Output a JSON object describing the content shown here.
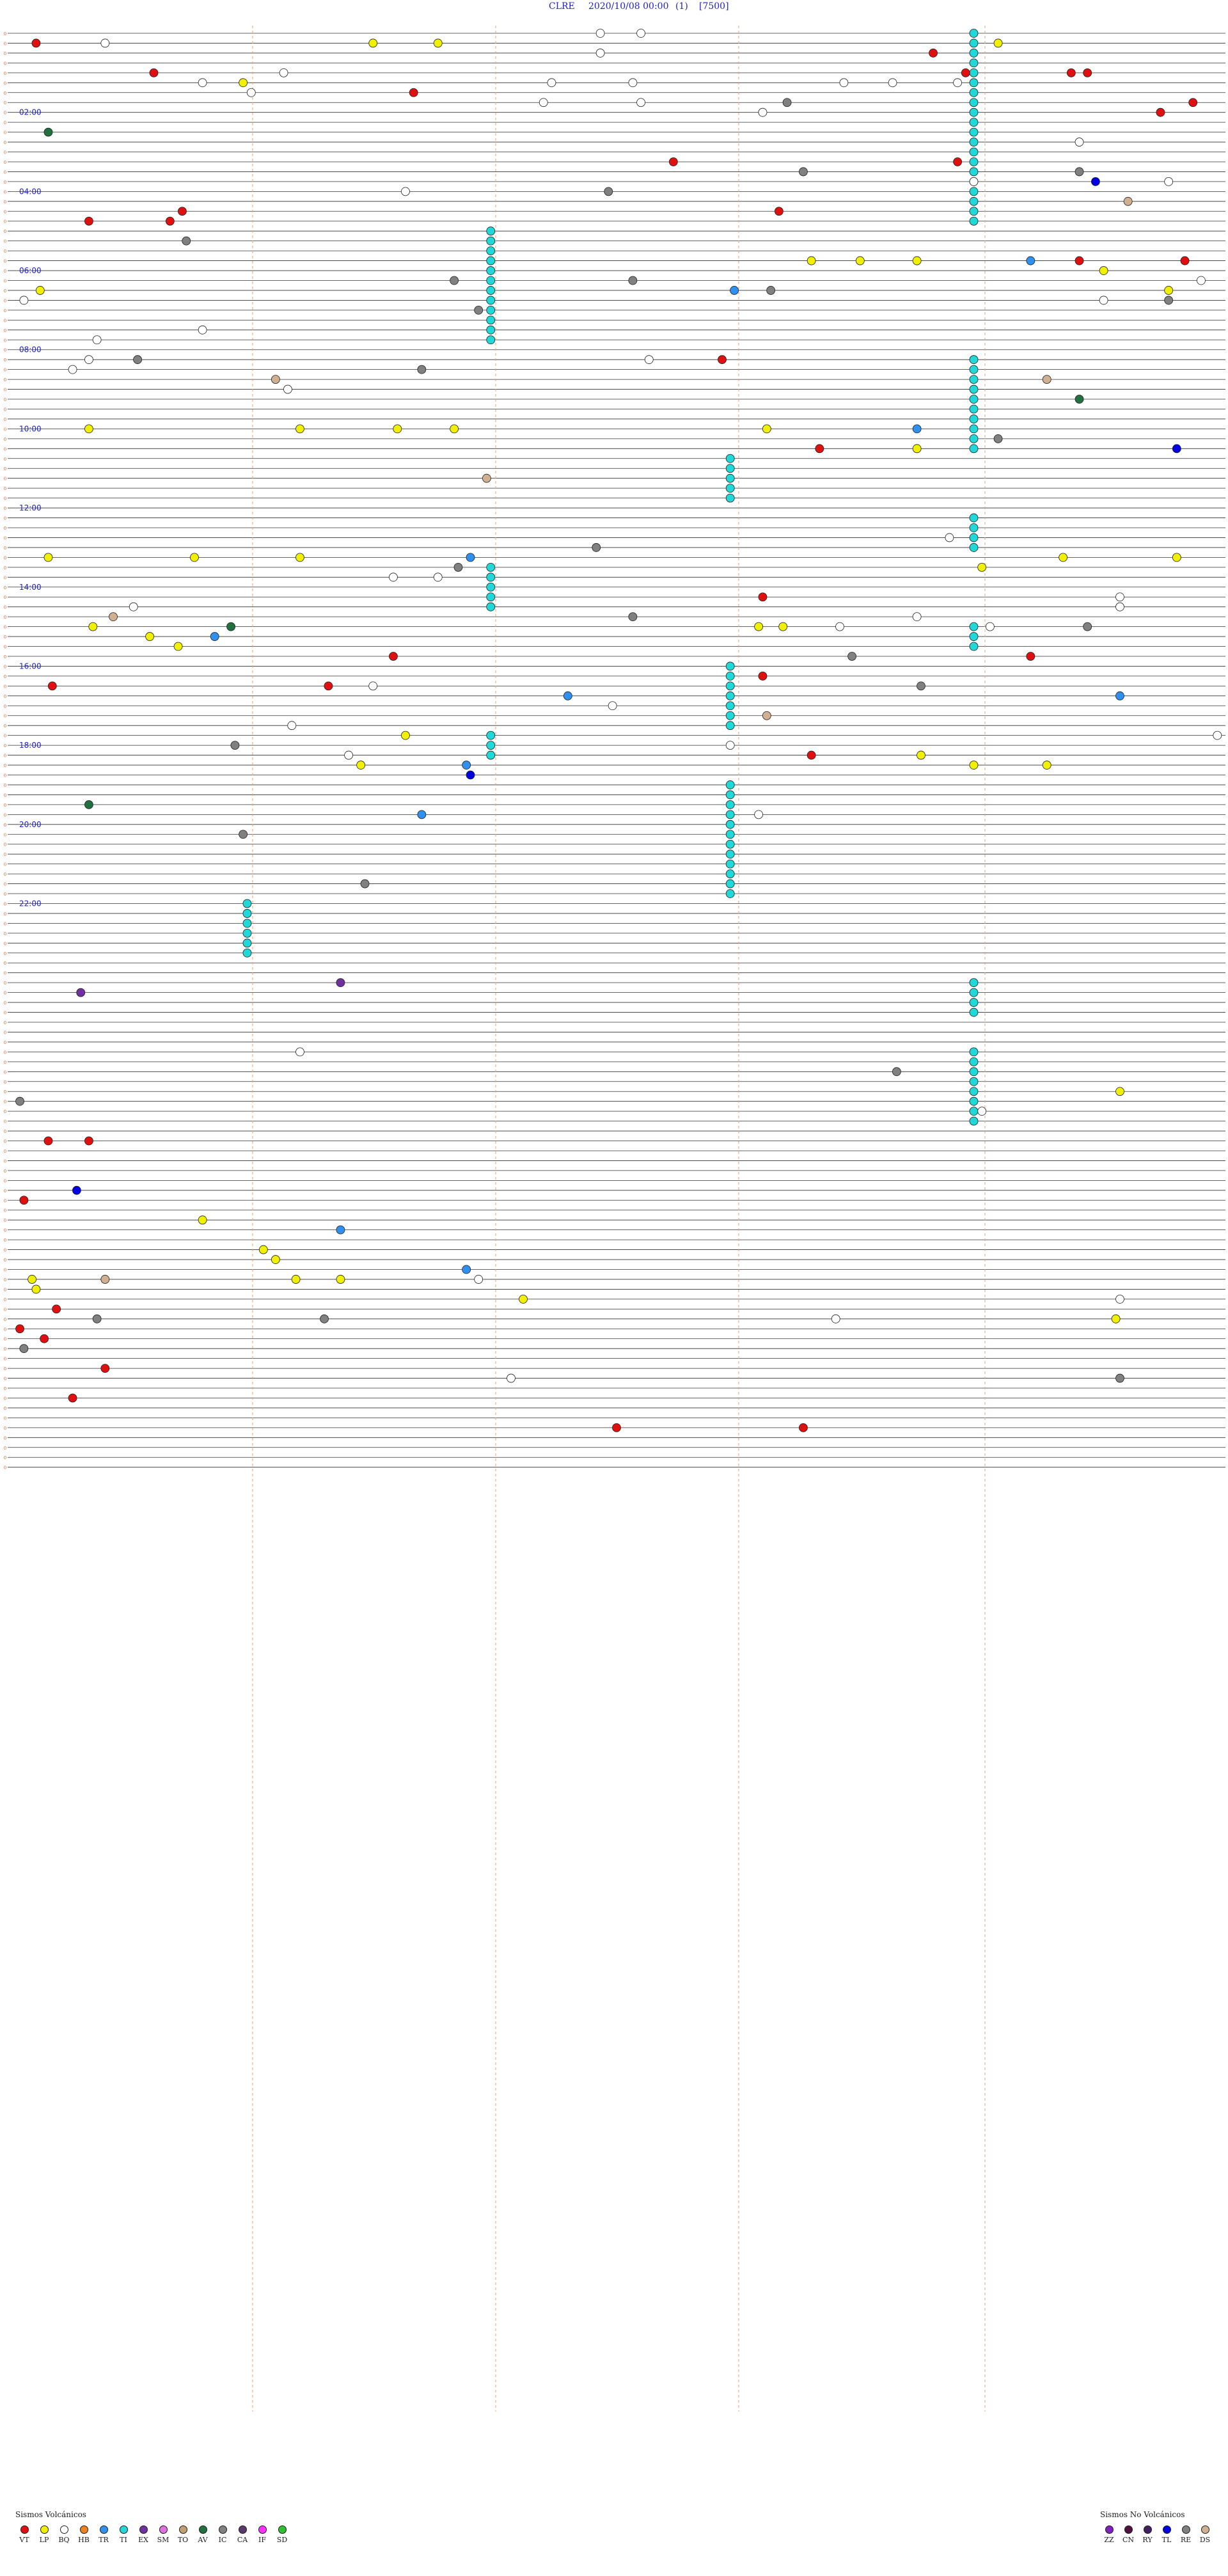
{
  "header": {
    "station": "CLRE",
    "datetime": "2020/10/08 00:00",
    "page": "(1)",
    "scale": "[7500]"
  },
  "legend": {
    "volcanic_title": "Sismos Volcánicos",
    "volcanic": [
      {
        "code": "VT",
        "color": "#e01010"
      },
      {
        "code": "LP",
        "color": "#f0f000"
      },
      {
        "code": "BQ",
        "color": "#ffffff"
      },
      {
        "code": "HB",
        "color": "#f08020"
      },
      {
        "code": "TR",
        "color": "#3090f0"
      },
      {
        "code": "TI",
        "color": "#20d8d8"
      },
      {
        "code": "EX",
        "color": "#7030a0"
      },
      {
        "code": "SM",
        "color": "#e070e0"
      },
      {
        "code": "TO",
        "color": "#c0a070"
      },
      {
        "code": "AV",
        "color": "#207040"
      },
      {
        "code": "IC",
        "color": "#808080"
      },
      {
        "code": "CA",
        "color": "#5a3a6a"
      },
      {
        "code": "IF",
        "color": "#ff30ff"
      },
      {
        "code": "SD",
        "color": "#30c030"
      }
    ],
    "nonvolcanic_title": "Sismos No Volcánicos",
    "nonvolcanic": [
      {
        "code": "ZZ",
        "color": "#8020c0"
      },
      {
        "code": "CN",
        "color": "#501040"
      },
      {
        "code": "RY",
        "color": "#402060"
      },
      {
        "code": "TL",
        "color": "#0000e0"
      },
      {
        "code": "RE",
        "color": "#808080"
      },
      {
        "code": "DS",
        "color": "#d0b090"
      }
    ]
  },
  "chart_data": {
    "type": "scatter",
    "title": "CLRE 2020/10/08 00:00 (1) [7500]",
    "x_unit": "minute within the trace line (0-15)",
    "y_unit": "trace line (15 min each, 96 lines = 24 h)",
    "hour_labels": [
      "02:00",
      "04:00",
      "06:00",
      "08:00",
      "10:00",
      "12:00",
      "14:00",
      "16:00",
      "18:00",
      "20:00",
      "22:00"
    ],
    "tremor_bands": [
      {
        "x": 11.9,
        "rows": [
          0,
          19
        ]
      },
      {
        "x": 5.95,
        "rows": [
          20,
          31
        ]
      },
      {
        "x": 11.9,
        "rows": [
          33,
          42
        ]
      },
      {
        "x": 8.9,
        "rows": [
          43,
          47
        ]
      },
      {
        "x": 11.9,
        "rows": [
          49,
          52
        ]
      },
      {
        "x": 5.95,
        "rows": [
          54,
          58
        ]
      },
      {
        "x": 11.9,
        "rows": [
          60,
          62
        ]
      },
      {
        "x": 8.9,
        "rows": [
          64,
          70
        ]
      },
      {
        "x": 5.95,
        "rows": [
          71,
          73
        ]
      },
      {
        "x": 8.9,
        "rows": [
          76,
          87
        ]
      },
      {
        "x": 2.95,
        "rows": [
          88,
          93
        ]
      },
      {
        "x": 11.9,
        "rows": [
          96,
          99
        ]
      },
      {
        "x": 11.9,
        "rows": [
          103,
          110
        ]
      }
    ],
    "events": [
      {
        "t": 0.35,
        "r": 1,
        "c": "VT"
      },
      {
        "t": 1.2,
        "r": 1,
        "c": "BQ"
      },
      {
        "t": 4.5,
        "r": 1,
        "c": "LP"
      },
      {
        "t": 5.3,
        "r": 1,
        "c": "LP"
      },
      {
        "t": 7.3,
        "r": 0,
        "c": "BQ"
      },
      {
        "t": 7.8,
        "r": 0,
        "c": "BQ"
      },
      {
        "t": 11.4,
        "r": 2,
        "c": "VT"
      },
      {
        "t": 12.2,
        "r": 1,
        "c": "LP"
      },
      {
        "t": 7.3,
        "r": 2,
        "c": "BQ"
      },
      {
        "t": 1.8,
        "r": 4,
        "c": "VT"
      },
      {
        "t": 2.4,
        "r": 5,
        "c": "BQ"
      },
      {
        "t": 2.9,
        "r": 5,
        "c": "LP"
      },
      {
        "t": 3.0,
        "r": 6,
        "c": "BQ"
      },
      {
        "t": 3.4,
        "r": 4,
        "c": "BQ"
      },
      {
        "t": 5.0,
        "r": 6,
        "c": "VT"
      },
      {
        "t": 6.7,
        "r": 5,
        "c": "BQ"
      },
      {
        "t": 6.6,
        "r": 7,
        "c": "BQ"
      },
      {
        "t": 7.7,
        "r": 5,
        "c": "BQ"
      },
      {
        "t": 7.8,
        "r": 7,
        "c": "BQ"
      },
      {
        "t": 9.3,
        "r": 8,
        "c": "BQ"
      },
      {
        "t": 9.6,
        "r": 7,
        "c": "IC"
      },
      {
        "t": 10.3,
        "r": 5,
        "c": "BQ"
      },
      {
        "t": 10.9,
        "r": 5,
        "c": "BQ"
      },
      {
        "t": 11.8,
        "r": 4,
        "c": "VT"
      },
      {
        "t": 11.7,
        "r": 5,
        "c": "BQ"
      },
      {
        "t": 13.1,
        "r": 4,
        "c": "VT"
      },
      {
        "t": 13.3,
        "r": 4,
        "c": "VT"
      },
      {
        "t": 14.6,
        "r": 7,
        "c": "VT"
      },
      {
        "t": 14.2,
        "r": 8,
        "c": "VT"
      },
      {
        "t": 0.5,
        "r": 10,
        "c": "AV"
      },
      {
        "t": 13.2,
        "r": 11,
        "c": "BQ"
      },
      {
        "t": 8.2,
        "r": 13,
        "c": "VT"
      },
      {
        "t": 11.7,
        "r": 13,
        "c": "VT"
      },
      {
        "t": 9.8,
        "r": 14,
        "c": "IC"
      },
      {
        "t": 13.2,
        "r": 14,
        "c": "IC"
      },
      {
        "t": 11.9,
        "r": 15,
        "c": "BQ"
      },
      {
        "t": 13.4,
        "r": 15,
        "c": "TL"
      },
      {
        "t": 4.9,
        "r": 16,
        "c": "BQ"
      },
      {
        "t": 7.4,
        "r": 16,
        "c": "IC"
      },
      {
        "t": 14.3,
        "r": 15,
        "c": "BQ"
      },
      {
        "t": 13.8,
        "r": 17,
        "c": "DS"
      },
      {
        "t": 1.0,
        "r": 19,
        "c": "VT"
      },
      {
        "t": 2.0,
        "r": 19,
        "c": "VT"
      },
      {
        "t": 2.15,
        "r": 18,
        "c": "VT"
      },
      {
        "t": 9.5,
        "r": 18,
        "c": "VT"
      },
      {
        "t": 2.2,
        "r": 21,
        "c": "IC"
      },
      {
        "t": 9.9,
        "r": 23,
        "c": "LP"
      },
      {
        "t": 10.5,
        "r": 23,
        "c": "LP"
      },
      {
        "t": 11.2,
        "r": 23,
        "c": "LP"
      },
      {
        "t": 12.6,
        "r": 23,
        "c": "TR"
      },
      {
        "t": 13.2,
        "r": 23,
        "c": "VT"
      },
      {
        "t": 13.5,
        "r": 24,
        "c": "LP"
      },
      {
        "t": 14.5,
        "r": 23,
        "c": "VT"
      },
      {
        "t": 14.7,
        "r": 25,
        "c": "BQ"
      },
      {
        "t": 0.2,
        "r": 27,
        "c": "BQ"
      },
      {
        "t": 0.4,
        "r": 26,
        "c": "LP"
      },
      {
        "t": 5.5,
        "r": 25,
        "c": "IC"
      },
      {
        "t": 7.7,
        "r": 25,
        "c": "IC"
      },
      {
        "t": 8.95,
        "r": 26,
        "c": "TR"
      },
      {
        "t": 9.4,
        "r": 26,
        "c": "IC"
      },
      {
        "t": 13.5,
        "r": 27,
        "c": "BQ"
      },
      {
        "t": 14.3,
        "r": 27,
        "c": "IC"
      },
      {
        "t": 14.3,
        "r": 26,
        "c": "LP"
      },
      {
        "t": 5.8,
        "r": 28,
        "c": "IC"
      },
      {
        "t": 1.1,
        "r": 31,
        "c": "BQ"
      },
      {
        "t": 2.4,
        "r": 30,
        "c": "BQ"
      },
      {
        "t": 0.8,
        "r": 34,
        "c": "BQ"
      },
      {
        "t": 1.0,
        "r": 33,
        "c": "BQ"
      },
      {
        "t": 1.6,
        "r": 33,
        "c": "IC"
      },
      {
        "t": 5.1,
        "r": 34,
        "c": "IC"
      },
      {
        "t": 3.3,
        "r": 35,
        "c": "DS"
      },
      {
        "t": 3.45,
        "r": 36,
        "c": "BQ"
      },
      {
        "t": 7.9,
        "r": 33,
        "c": "BQ"
      },
      {
        "t": 8.8,
        "r": 33,
        "c": "VT"
      },
      {
        "t": 12.8,
        "r": 35,
        "c": "DS"
      },
      {
        "t": 13.2,
        "r": 37,
        "c": "AV"
      },
      {
        "t": 1.0,
        "r": 40,
        "c": "LP"
      },
      {
        "t": 3.6,
        "r": 40,
        "c": "LP"
      },
      {
        "t": 4.8,
        "r": 40,
        "c": "LP"
      },
      {
        "t": 5.5,
        "r": 40,
        "c": "LP"
      },
      {
        "t": 9.35,
        "r": 40,
        "c": "LP"
      },
      {
        "t": 11.2,
        "r": 40,
        "c": "TR"
      },
      {
        "t": 12.2,
        "r": 41,
        "c": "IC"
      },
      {
        "t": 11.2,
        "r": 42,
        "c": "LP"
      },
      {
        "t": 14.4,
        "r": 42,
        "c": "TL"
      },
      {
        "t": 5.9,
        "r": 45,
        "c": "DS"
      },
      {
        "t": 0.5,
        "r": 53,
        "c": "LP"
      },
      {
        "t": 2.3,
        "r": 53,
        "c": "LP"
      },
      {
        "t": 3.6,
        "r": 53,
        "c": "LP"
      },
      {
        "t": 5.7,
        "r": 53,
        "c": "TR"
      },
      {
        "t": 5.55,
        "r": 54,
        "c": "IC"
      },
      {
        "t": 7.25,
        "r": 52,
        "c": "IC"
      },
      {
        "t": 4.75,
        "r": 55,
        "c": "BQ"
      },
      {
        "t": 5.3,
        "r": 55,
        "c": "BQ"
      },
      {
        "t": 11.6,
        "r": 51,
        "c": "BQ"
      },
      {
        "t": 12.0,
        "r": 54,
        "c": "LP"
      },
      {
        "t": 13.0,
        "r": 53,
        "c": "LP"
      },
      {
        "t": 14.4,
        "r": 53,
        "c": "LP"
      },
      {
        "t": 13.7,
        "r": 57,
        "c": "BQ"
      },
      {
        "t": 1.55,
        "r": 58,
        "c": "BQ"
      },
      {
        "t": 1.3,
        "r": 59,
        "c": "DS"
      },
      {
        "t": 1.05,
        "r": 60,
        "c": "LP"
      },
      {
        "t": 2.75,
        "r": 60,
        "c": "AV"
      },
      {
        "t": 2.55,
        "r": 61,
        "c": "TR"
      },
      {
        "t": 1.75,
        "r": 61,
        "c": "LP"
      },
      {
        "t": 2.1,
        "r": 62,
        "c": "LP"
      },
      {
        "t": 7.7,
        "r": 59,
        "c": "IC"
      },
      {
        "t": 9.25,
        "r": 60,
        "c": "LP"
      },
      {
        "t": 9.55,
        "r": 60,
        "c": "LP"
      },
      {
        "t": 10.25,
        "r": 60,
        "c": "BQ"
      },
      {
        "t": 11.2,
        "r": 59,
        "c": "BQ"
      },
      {
        "t": 12.1,
        "r": 60,
        "c": "BQ"
      },
      {
        "t": 13.3,
        "r": 60,
        "c": "IC"
      },
      {
        "t": 13.7,
        "r": 58,
        "c": "BQ"
      },
      {
        "t": 10.4,
        "r": 63,
        "c": "IC"
      },
      {
        "t": 11.25,
        "r": 66,
        "c": "IC"
      },
      {
        "t": 3.95,
        "r": 66,
        "c": "VT"
      },
      {
        "t": 4.5,
        "r": 66,
        "c": "BQ"
      },
      {
        "t": 6.9,
        "r": 67,
        "c": "TR"
      },
      {
        "t": 7.45,
        "r": 68,
        "c": "BQ"
      },
      {
        "t": 13.7,
        "r": 67,
        "c": "TR"
      },
      {
        "t": 3.5,
        "r": 70,
        "c": "BQ"
      },
      {
        "t": 4.9,
        "r": 71,
        "c": "LP"
      },
      {
        "t": 9.35,
        "r": 69,
        "c": "DS"
      },
      {
        "t": 14.9,
        "r": 71,
        "c": "BQ"
      },
      {
        "t": 2.8,
        "r": 72,
        "c": "IC"
      },
      {
        "t": 4.2,
        "r": 73,
        "c": "BQ"
      },
      {
        "t": 8.9,
        "r": 72,
        "c": "BQ"
      },
      {
        "t": 4.35,
        "r": 74,
        "c": "LP"
      },
      {
        "t": 5.65,
        "r": 74,
        "c": "TR"
      },
      {
        "t": 5.7,
        "r": 75,
        "c": "TL"
      },
      {
        "t": 11.9,
        "r": 74,
        "c": "LP"
      },
      {
        "t": 12.8,
        "r": 74,
        "c": "LP"
      },
      {
        "t": 1.0,
        "r": 78,
        "c": "AV"
      },
      {
        "t": 5.1,
        "r": 79,
        "c": "TR"
      },
      {
        "t": 9.25,
        "r": 79,
        "c": "BQ"
      },
      {
        "t": 2.9,
        "r": 81,
        "c": "IC"
      },
      {
        "t": 4.4,
        "r": 86,
        "c": "IC"
      },
      {
        "t": 0.9,
        "r": 97,
        "c": "EX"
      },
      {
        "t": 4.1,
        "r": 96,
        "c": "EX"
      },
      {
        "t": 3.6,
        "r": 103,
        "c": "BQ"
      },
      {
        "t": 10.95,
        "r": 105,
        "c": "IC"
      },
      {
        "t": 12.0,
        "r": 109,
        "c": "BQ"
      },
      {
        "t": 13.7,
        "r": 107,
        "c": "LP"
      },
      {
        "t": 0.15,
        "r": 108,
        "c": "IC"
      },
      {
        "t": 0.85,
        "r": 117,
        "c": "TL"
      },
      {
        "t": 2.4,
        "r": 120,
        "c": "LP"
      },
      {
        "t": 4.1,
        "r": 121,
        "c": "TR"
      },
      {
        "t": 3.3,
        "r": 124,
        "c": "LP"
      },
      {
        "t": 3.15,
        "r": 123,
        "c": "LP"
      },
      {
        "t": 0.3,
        "r": 126,
        "c": "LP"
      },
      {
        "t": 1.2,
        "r": 126,
        "c": "DS"
      },
      {
        "t": 0.35,
        "r": 127,
        "c": "LP"
      },
      {
        "t": 5.65,
        "r": 125,
        "c": "TR"
      },
      {
        "t": 5.8,
        "r": 126,
        "c": "BQ"
      },
      {
        "t": 3.55,
        "r": 126,
        "c": "LP"
      },
      {
        "t": 4.1,
        "r": 126,
        "c": "LP"
      },
      {
        "t": 6.35,
        "r": 128,
        "c": "LP"
      },
      {
        "t": 1.1,
        "r": 130,
        "c": "IC"
      },
      {
        "t": 3.9,
        "r": 130,
        "c": "IC"
      },
      {
        "t": 10.2,
        "r": 130,
        "c": "BQ"
      },
      {
        "t": 13.7,
        "r": 128,
        "c": "BQ"
      },
      {
        "t": 13.65,
        "r": 130,
        "c": "LP"
      },
      {
        "t": 0.2,
        "r": 133,
        "c": "IC"
      },
      {
        "t": 6.2,
        "r": 136,
        "c": "BQ"
      },
      {
        "t": 13.7,
        "r": 136,
        "c": "IC"
      },
      {
        "t": 9.9,
        "r": 73,
        "c": "VT"
      },
      {
        "t": 9.3,
        "r": 57,
        "c": "VT"
      },
      {
        "t": 4.75,
        "r": 63,
        "c": "VT"
      },
      {
        "t": 9.3,
        "r": 65,
        "c": "VT"
      },
      {
        "t": 11.25,
        "r": 73,
        "c": "LP"
      },
      {
        "t": 0.55,
        "r": 66,
        "c": "VT"
      },
      {
        "t": 10.0,
        "r": 42,
        "c": "VT"
      },
      {
        "t": 12.6,
        "r": 63,
        "c": "VT"
      },
      {
        "t": 0.5,
        "r": 112,
        "c": "VT"
      },
      {
        "t": 1.0,
        "r": 112,
        "c": "VT"
      },
      {
        "t": 0.2,
        "r": 118,
        "c": "VT"
      },
      {
        "t": 0.6,
        "r": 129,
        "c": "VT"
      },
      {
        "t": 0.15,
        "r": 131,
        "c": "VT"
      },
      {
        "t": 0.45,
        "r": 132,
        "c": "VT"
      },
      {
        "t": 1.2,
        "r": 135,
        "c": "VT"
      },
      {
        "t": 0.8,
        "r": 138,
        "c": "VT"
      },
      {
        "t": 7.5,
        "r": 141,
        "c": "VT"
      },
      {
        "t": 9.8,
        "r": 141,
        "c": "VT"
      }
    ]
  }
}
